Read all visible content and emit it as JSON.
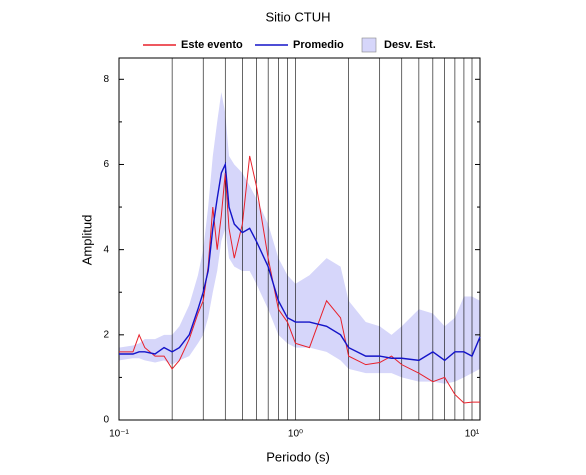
{
  "chart_data": {
    "type": "line",
    "title": "Sitio CTUH",
    "x_label": "Periodo (s)",
    "y_label": "Amplitud",
    "log_x": true,
    "grid": true,
    "xlim": [
      0.1,
      11.1
    ],
    "ylim": [
      0,
      8.5
    ],
    "xticks": [
      {
        "value": 0.1,
        "label": "10⁻¹"
      },
      {
        "value": 1,
        "label": "10⁰"
      },
      {
        "value": 10,
        "label": "10¹"
      }
    ],
    "xminor": [
      0.2,
      0.3,
      0.4,
      0.5,
      0.6,
      0.7,
      0.8,
      0.9,
      2,
      3,
      4,
      5,
      6,
      7,
      8,
      9
    ],
    "yticks": [
      0,
      2,
      4,
      6,
      8
    ],
    "yminor": [
      1,
      3,
      5,
      7
    ],
    "x": [
      0.1,
      0.12,
      0.13,
      0.14,
      0.16,
      0.18,
      0.2,
      0.22,
      0.25,
      0.28,
      0.3,
      0.32,
      0.34,
      0.36,
      0.38,
      0.4,
      0.42,
      0.45,
      0.5,
      0.55,
      0.6,
      0.7,
      0.8,
      0.9,
      1,
      1.2,
      1.5,
      1.8,
      2,
      2.5,
      3,
      3.5,
      4,
      5,
      6,
      7,
      8,
      9,
      10,
      11.1
    ],
    "band": {
      "name": "Desv. Est.",
      "color": "#d6d6fa",
      "lower": [
        1.4,
        1.45,
        1.45,
        1.4,
        1.35,
        1.4,
        1.3,
        1.4,
        1.5,
        1.8,
        2.0,
        2.4,
        3.0,
        3.5,
        4.2,
        4.5,
        3.8,
        3.6,
        3.5,
        3.5,
        3.2,
        2.6,
        2.0,
        1.8,
        1.7,
        1.7,
        1.6,
        1.4,
        1.2,
        1.1,
        1.1,
        1.1,
        1.0,
        0.9,
        0.9,
        0.85,
        0.9,
        1.0,
        1.1,
        1.2
      ],
      "upper": [
        1.7,
        1.75,
        1.8,
        1.9,
        1.9,
        2.0,
        2.0,
        2.2,
        2.7,
        3.4,
        4.0,
        5.0,
        6.2,
        7.0,
        7.7,
        7.2,
        6.2,
        6.0,
        5.8,
        5.5,
        5.2,
        4.6,
        3.8,
        3.4,
        3.2,
        3.4,
        3.8,
        3.6,
        2.8,
        2.3,
        2.2,
        2.0,
        2.2,
        2.6,
        2.5,
        2.2,
        2.4,
        2.9,
        2.9,
        2.8
      ]
    },
    "series": [
      {
        "name": "Este evento",
        "color": "#e8202a",
        "values": [
          1.6,
          1.6,
          2.0,
          1.7,
          1.5,
          1.5,
          1.2,
          1.4,
          1.9,
          2.5,
          2.8,
          3.6,
          5.0,
          4.0,
          4.8,
          5.8,
          4.5,
          3.8,
          4.6,
          6.2,
          5.5,
          3.8,
          2.6,
          2.3,
          1.8,
          1.7,
          2.8,
          2.4,
          1.5,
          1.3,
          1.35,
          1.5,
          1.3,
          1.1,
          0.9,
          1.0,
          0.6,
          0.4,
          0.42,
          0.42
        ]
      },
      {
        "name": "Promedio",
        "color": "#1414c8",
        "values": [
          1.55,
          1.55,
          1.6,
          1.6,
          1.55,
          1.7,
          1.6,
          1.7,
          2.0,
          2.6,
          3.0,
          3.5,
          4.5,
          5.2,
          5.8,
          6.0,
          5.0,
          4.6,
          4.4,
          4.5,
          4.2,
          3.6,
          2.8,
          2.4,
          2.3,
          2.3,
          2.2,
          2.0,
          1.7,
          1.5,
          1.5,
          1.45,
          1.45,
          1.4,
          1.6,
          1.4,
          1.6,
          1.6,
          1.5,
          1.95
        ]
      }
    ]
  }
}
